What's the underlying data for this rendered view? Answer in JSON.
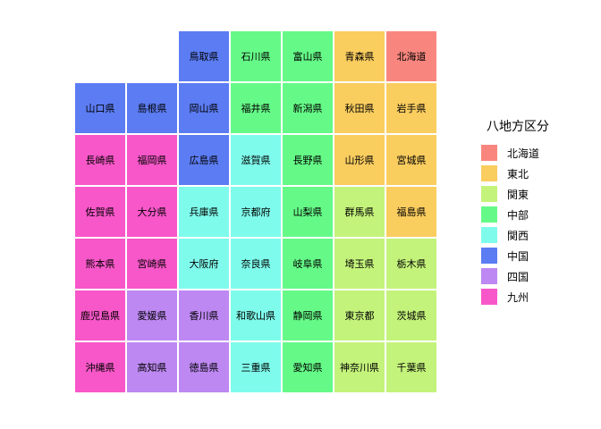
{
  "figure": {
    "background": "#ffffff",
    "text_color": "#000000"
  },
  "chart_data": {
    "type": "heatmap",
    "subtype": "tile-grid-map-japan-prefectures",
    "title": "",
    "grid": {
      "rows": 7,
      "cols": 7
    },
    "legend": {
      "title": "八地方区分",
      "entries": [
        {
          "label": "北海道",
          "color": "#F9867E"
        },
        {
          "label": "東北",
          "color": "#FACD5F"
        },
        {
          "label": "関東",
          "color": "#C4F37B"
        },
        {
          "label": "中部",
          "color": "#65FA87"
        },
        {
          "label": "関西",
          "color": "#7FFBEC"
        },
        {
          "label": "中国",
          "color": "#5C7CF3"
        },
        {
          "label": "四国",
          "color": "#BD88F2"
        },
        {
          "label": "九州",
          "color": "#F857C9"
        }
      ]
    },
    "tiles": [
      {
        "row": 1,
        "col": 3,
        "name": "鳥取県",
        "region": "中国"
      },
      {
        "row": 1,
        "col": 4,
        "name": "石川県",
        "region": "中部"
      },
      {
        "row": 1,
        "col": 5,
        "name": "富山県",
        "region": "中部"
      },
      {
        "row": 1,
        "col": 6,
        "name": "青森県",
        "region": "東北"
      },
      {
        "row": 1,
        "col": 7,
        "name": "北海道",
        "region": "北海道"
      },
      {
        "row": 2,
        "col": 1,
        "name": "山口県",
        "region": "中国"
      },
      {
        "row": 2,
        "col": 2,
        "name": "島根県",
        "region": "中国"
      },
      {
        "row": 2,
        "col": 3,
        "name": "岡山県",
        "region": "中国"
      },
      {
        "row": 2,
        "col": 4,
        "name": "福井県",
        "region": "中部"
      },
      {
        "row": 2,
        "col": 5,
        "name": "新潟県",
        "region": "中部"
      },
      {
        "row": 2,
        "col": 6,
        "name": "秋田県",
        "region": "東北"
      },
      {
        "row": 2,
        "col": 7,
        "name": "岩手県",
        "region": "東北"
      },
      {
        "row": 3,
        "col": 1,
        "name": "長崎県",
        "region": "九州"
      },
      {
        "row": 3,
        "col": 2,
        "name": "福岡県",
        "region": "九州"
      },
      {
        "row": 3,
        "col": 3,
        "name": "広島県",
        "region": "中国"
      },
      {
        "row": 3,
        "col": 4,
        "name": "滋賀県",
        "region": "関西"
      },
      {
        "row": 3,
        "col": 5,
        "name": "長野県",
        "region": "中部"
      },
      {
        "row": 3,
        "col": 6,
        "name": "山形県",
        "region": "東北"
      },
      {
        "row": 3,
        "col": 7,
        "name": "宮城県",
        "region": "東北"
      },
      {
        "row": 4,
        "col": 1,
        "name": "佐賀県",
        "region": "九州"
      },
      {
        "row": 4,
        "col": 2,
        "name": "大分県",
        "region": "九州"
      },
      {
        "row": 4,
        "col": 3,
        "name": "兵庫県",
        "region": "関西"
      },
      {
        "row": 4,
        "col": 4,
        "name": "京都府",
        "region": "関西"
      },
      {
        "row": 4,
        "col": 5,
        "name": "山梨県",
        "region": "中部"
      },
      {
        "row": 4,
        "col": 6,
        "name": "群馬県",
        "region": "関東"
      },
      {
        "row": 4,
        "col": 7,
        "name": "福島県",
        "region": "東北"
      },
      {
        "row": 5,
        "col": 1,
        "name": "熊本県",
        "region": "九州"
      },
      {
        "row": 5,
        "col": 2,
        "name": "宮崎県",
        "region": "九州"
      },
      {
        "row": 5,
        "col": 3,
        "name": "大阪府",
        "region": "関西"
      },
      {
        "row": 5,
        "col": 4,
        "name": "奈良県",
        "region": "関西"
      },
      {
        "row": 5,
        "col": 5,
        "name": "岐阜県",
        "region": "中部"
      },
      {
        "row": 5,
        "col": 6,
        "name": "埼玉県",
        "region": "関東"
      },
      {
        "row": 5,
        "col": 7,
        "name": "栃木県",
        "region": "関東"
      },
      {
        "row": 6,
        "col": 1,
        "name": "鹿児島県",
        "region": "九州"
      },
      {
        "row": 6,
        "col": 2,
        "name": "愛媛県",
        "region": "四国"
      },
      {
        "row": 6,
        "col": 3,
        "name": "香川県",
        "region": "四国"
      },
      {
        "row": 6,
        "col": 4,
        "name": "和歌山県",
        "region": "関西"
      },
      {
        "row": 6,
        "col": 5,
        "name": "静岡県",
        "region": "中部"
      },
      {
        "row": 6,
        "col": 6,
        "name": "東京都",
        "region": "関東"
      },
      {
        "row": 6,
        "col": 7,
        "name": "茨城県",
        "region": "関東"
      },
      {
        "row": 7,
        "col": 1,
        "name": "沖縄県",
        "region": "九州"
      },
      {
        "row": 7,
        "col": 2,
        "name": "高知県",
        "region": "四国"
      },
      {
        "row": 7,
        "col": 3,
        "name": "徳島県",
        "region": "四国"
      },
      {
        "row": 7,
        "col": 4,
        "name": "三重県",
        "region": "関西"
      },
      {
        "row": 7,
        "col": 5,
        "name": "愛知県",
        "region": "中部"
      },
      {
        "row": 7,
        "col": 6,
        "name": "神奈川県",
        "region": "関東"
      },
      {
        "row": 7,
        "col": 7,
        "name": "千葉県",
        "region": "関東"
      }
    ]
  }
}
